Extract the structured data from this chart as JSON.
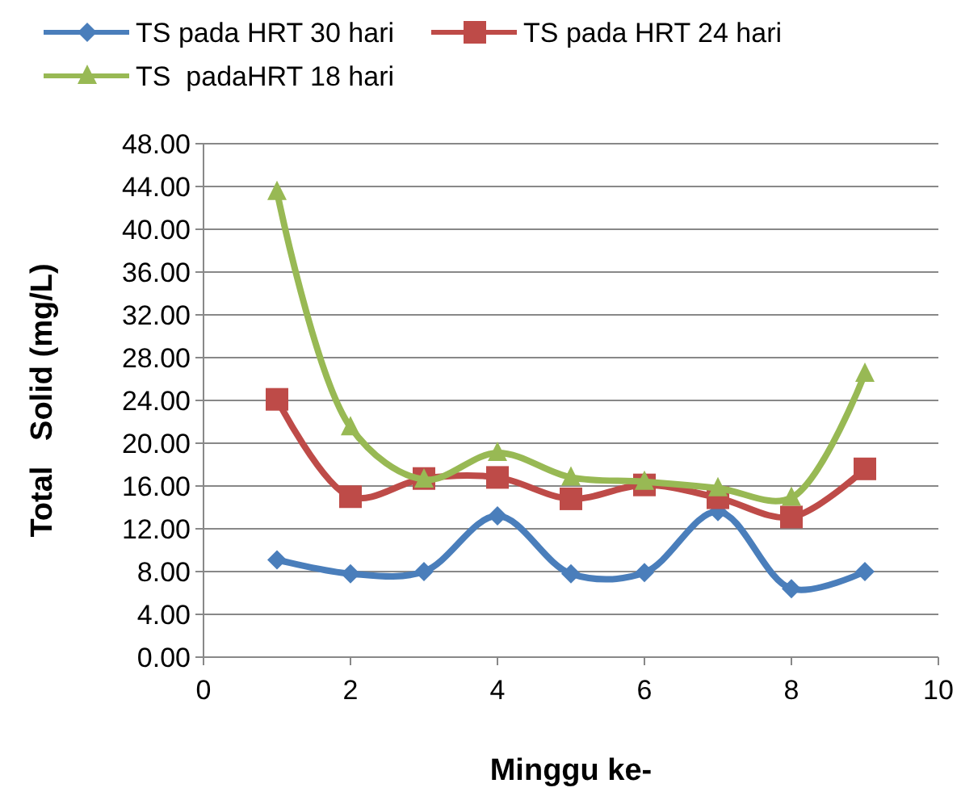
{
  "chart_data": {
    "type": "line",
    "xlabel": "Minggu ke-",
    "ylabel": "Total   Solid (mg/L)",
    "x": [
      1,
      2,
      3,
      4,
      5,
      6,
      7,
      8,
      9
    ],
    "xlim": [
      0,
      10
    ],
    "xticks": [
      0,
      2,
      4,
      6,
      8,
      10
    ],
    "ylim": [
      0,
      48
    ],
    "yticks": [
      {
        "value": 0,
        "label": "0.00"
      },
      {
        "value": 4,
        "label": "4.00"
      },
      {
        "value": 8,
        "label": "8.00"
      },
      {
        "value": 12,
        "label": "12.00"
      },
      {
        "value": 16,
        "label": "16.00"
      },
      {
        "value": 20,
        "label": "20.00"
      },
      {
        "value": 24,
        "label": "24.00"
      },
      {
        "value": 28,
        "label": "28.00"
      },
      {
        "value": 32,
        "label": "32.00"
      },
      {
        "value": 36,
        "label": "36.00"
      },
      {
        "value": 40,
        "label": "40.00"
      },
      {
        "value": 44,
        "label": "44.00"
      },
      {
        "value": 48,
        "label": "48.00"
      }
    ],
    "grid": "y",
    "legend": "top",
    "line_style": "solid",
    "series": [
      {
        "name": "TS pada HRT 30 hari",
        "color": "#4a7ebb",
        "marker": "diamond",
        "values": [
          9.1,
          7.8,
          8.0,
          13.2,
          7.8,
          7.9,
          13.6,
          6.4,
          8.0
        ]
      },
      {
        "name": "TS pada HRT 24 hari",
        "color": "#be4b48",
        "marker": "square",
        "values": [
          24.1,
          15.0,
          16.7,
          16.8,
          14.8,
          16.1,
          14.9,
          13.1,
          17.6
        ]
      },
      {
        "name": "TS  padaHRT 18 hari",
        "color": "#98b954",
        "marker": "triangle",
        "values": [
          43.5,
          21.5,
          16.6,
          19.1,
          16.8,
          16.4,
          15.8,
          14.9,
          26.5
        ]
      }
    ]
  }
}
